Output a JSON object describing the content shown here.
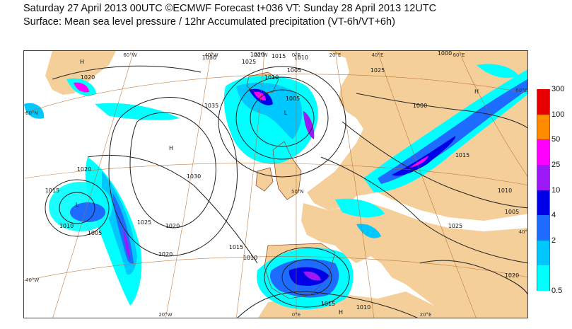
{
  "title": {
    "line1": "Saturday 27 April 2013 00UTC ©ECMWF Forecast t+036 VT: Sunday 28 April 2013 12UTC",
    "line2": "Surface: Mean sea level pressure / 12hr Accumulated precipitation (VT-6h/VT+6h)"
  },
  "map": {
    "top_lon_labels": [
      "60°W",
      "40°W",
      "20°W",
      "0°E",
      "20°E",
      "40°E",
      "60°E"
    ],
    "bottom_lon_labels": [
      "20°W",
      "0°E",
      "20°E"
    ],
    "left_lat_labels": [
      "60°N",
      "40°W"
    ],
    "right_lat_labels": [
      "60°E",
      "40°"
    ],
    "inner_lat_label": "50°N",
    "isobar_labels": [
      "1030",
      "1025",
      "1020",
      "1015",
      "1010",
      "1005",
      "1000",
      "1035",
      "1030",
      "1025",
      "1020",
      "1015",
      "1010",
      "1020",
      "1015",
      "1010",
      "1005",
      "1010",
      "1005",
      "1000",
      "1025",
      "1020",
      "1015",
      "1010",
      "1005",
      "1020",
      "1015",
      "1010",
      "1025",
      "1020"
    ],
    "pressure_centres": [
      "H",
      "H",
      "L",
      "L",
      "H",
      "H"
    ],
    "land_color": "#f5cf9a",
    "sea_color": "#ffffff"
  },
  "legend": {
    "unit_levels": [
      "300",
      "100",
      "50",
      "25",
      "10",
      "4",
      "2",
      "0.5"
    ],
    "colors": [
      "#e60000",
      "#ff8c00",
      "#ff00ff",
      "#9b19f5",
      "#0000e6",
      "#1e6cff",
      "#00c8ff",
      "#00ffff"
    ]
  }
}
